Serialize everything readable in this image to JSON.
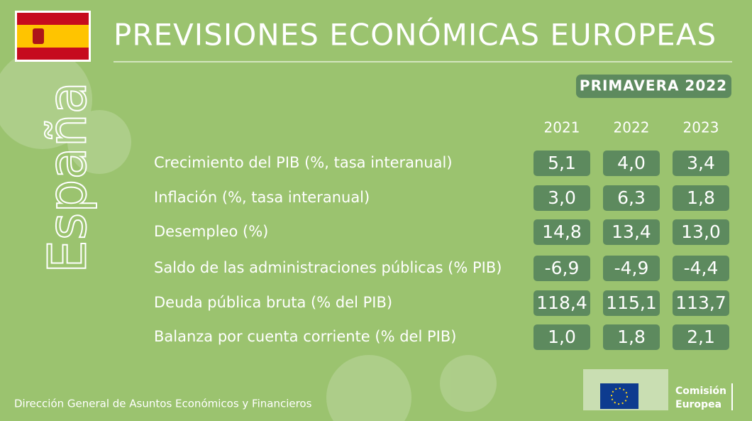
{
  "header": {
    "title": "PREVISIONES ECONÓMICAS EUROPEAS",
    "season": "PRIMAVERA 2022",
    "country": "España"
  },
  "table": {
    "columns": [
      "2021",
      "2022",
      "2023"
    ],
    "rows": [
      {
        "label": "Crecimiento del PIB (%, tasa interanual)",
        "values": [
          "5,1",
          "4,0",
          "3,4"
        ]
      },
      {
        "label": "Inflación (%, tasa interanual)",
        "values": [
          "3,0",
          "6,3",
          "1,8"
        ]
      },
      {
        "label": "Desempleo (%)",
        "values": [
          "14,8",
          "13,4",
          "13,0"
        ]
      },
      {
        "label": "Saldo de las administraciones públicas (% PIB)",
        "values": [
          "-6,9",
          "-4,9",
          "-4,4"
        ]
      },
      {
        "label": "Deuda pública bruta (% del PIB)",
        "values": [
          "118,4",
          "115,1",
          "113,7"
        ]
      },
      {
        "label": "Balanza por cuenta corriente (% del PIB)",
        "values": [
          "1,0",
          "1,8",
          "2,1"
        ]
      }
    ]
  },
  "footer": {
    "text": "Dirección General de Asuntos Económicos y Financieros",
    "logo": [
      "Comisión",
      "Europea"
    ]
  }
}
